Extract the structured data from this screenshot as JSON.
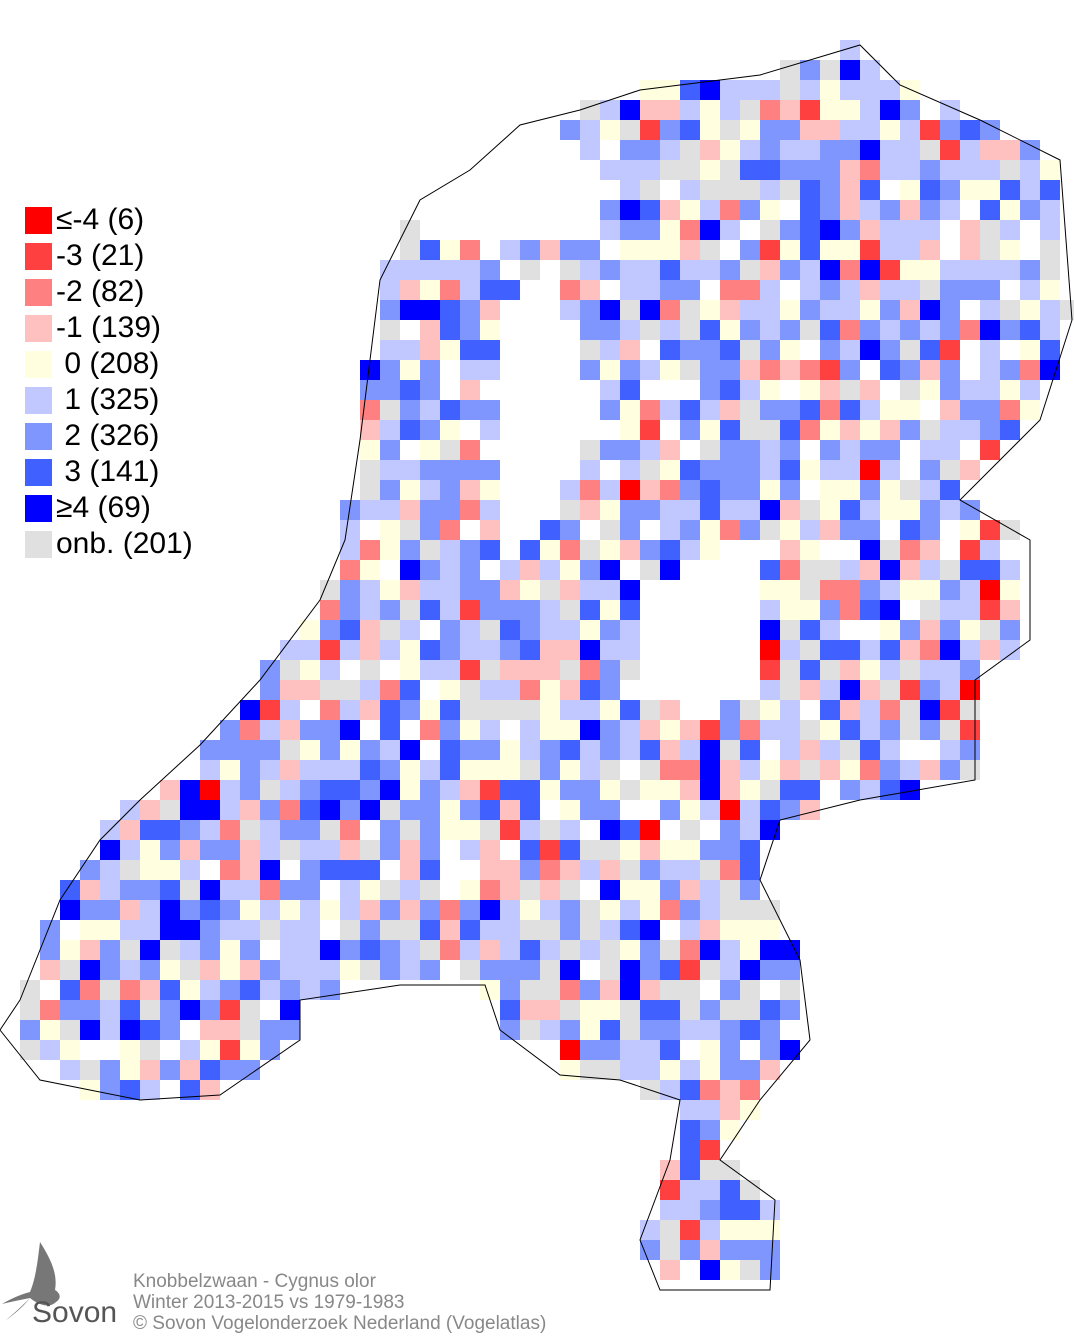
{
  "legend": [
    {
      "label": "≤-4 (6)",
      "value": "≤-4",
      "count": 6,
      "color": "#ff0000"
    },
    {
      "label": "-3 (21)",
      "value": "-3",
      "count": 21,
      "color": "#ff4040"
    },
    {
      "label": "-2 (82)",
      "value": "-2",
      "count": 82,
      "color": "#ff8080"
    },
    {
      "label": "-1 (139)",
      "value": "-1",
      "count": 139,
      "color": "#ffc0c0"
    },
    {
      "label": " 0 (208)",
      "value": "0",
      "count": 208,
      "color": "#ffffe0"
    },
    {
      "label": " 1 (325)",
      "value": "1",
      "count": 325,
      "color": "#c0c8ff"
    },
    {
      "label": " 2 (326)",
      "value": "2",
      "count": 326,
      "color": "#8096ff"
    },
    {
      "label": " 3 (141)",
      "value": "3",
      "count": 141,
      "color": "#4060ff"
    },
    {
      "label": "≥4 (69)",
      "value": "≥4",
      "count": 69,
      "color": "#0000ff"
    },
    {
      "label": "onb. (201)",
      "value": "onb.",
      "count": 201,
      "color": "#e0e0e0"
    }
  ],
  "credits": {
    "species": "Knobbelzwaan - Cygnus olor",
    "period": "Winter 2013-2015 vs 1979-1983",
    "copyright": "© Sovon Vogelonderzoek Nederland (Vogelatlas)"
  },
  "logo": {
    "text": "Sovon"
  }
}
